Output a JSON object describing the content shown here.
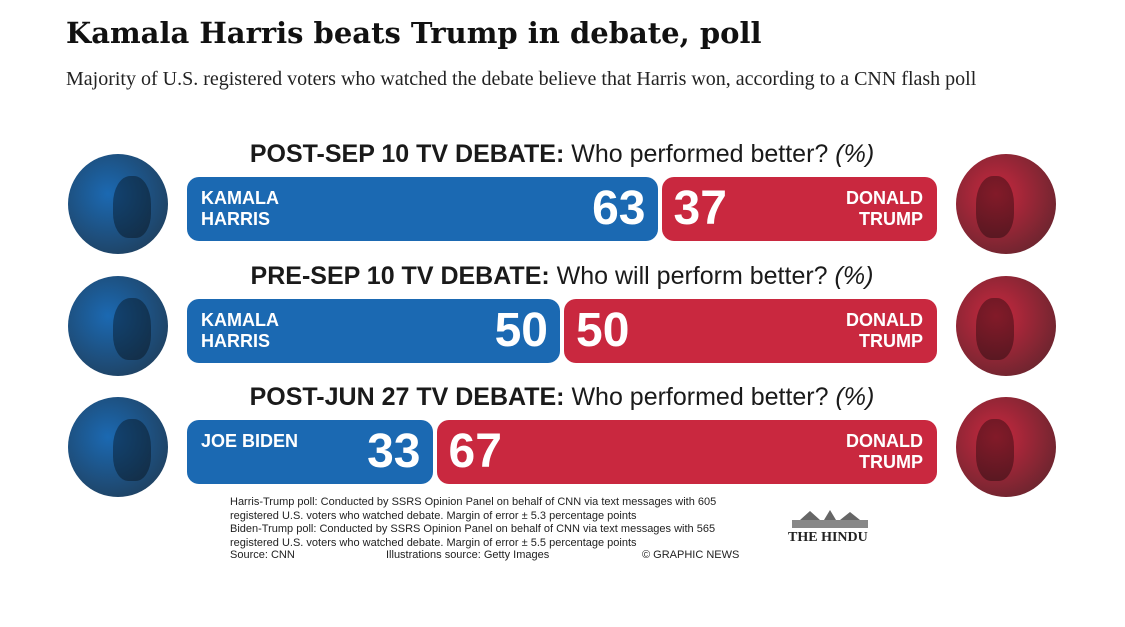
{
  "chart_data": {
    "type": "stacked-bar",
    "title": "Kamala Harris beats Trump in debate, poll",
    "subtitle": "Majority of U.S. registered voters who watched the debate believe that Harris won, according to a CNN flash poll",
    "rows": [
      {
        "heading": "POST-SEP 10 TV DEBATE:",
        "question": "Who performed better?",
        "unit": "(%)",
        "series": [
          {
            "name": "KAMALA HARRIS",
            "color": "#1b69b2",
            "value": 63
          },
          {
            "name": "DONALD TRUMP",
            "color": "#c9283f",
            "value": 37
          }
        ]
      },
      {
        "heading": "PRE-SEP 10 TV DEBATE:",
        "question": "Who will perform better?",
        "unit": "(%)",
        "series": [
          {
            "name": "KAMALA HARRIS",
            "color": "#1b69b2",
            "value": 50
          },
          {
            "name": "DONALD TRUMP",
            "color": "#c9283f",
            "value": 50
          }
        ]
      },
      {
        "heading": "POST-JUN 27 TV DEBATE:",
        "question": "Who performed better?",
        "unit": "(%)",
        "series": [
          {
            "name": "JOE BIDEN",
            "color": "#1b69b2",
            "value": 33
          },
          {
            "name": "DONALD TRUMP",
            "color": "#c9283f",
            "value": 67
          }
        ]
      }
    ],
    "notes": [
      "Harris-Trump poll: Conducted by SSRS Opinion Panel on behalf of CNN via text messages with 605 registered U.S. voters who watched debate. Margin of error ± 5.3 percentage points",
      "Biden-Trump poll: Conducted by SSRS Opinion Panel on behalf of CNN via text messages with 565 registered U.S. voters who watched debate. Margin of error ± 5.5 percentage points"
    ],
    "source": "Source: CNN",
    "illustrations": "Illustrations source: Getty Images",
    "credit": "© GRAPHIC NEWS",
    "publisher": "THE HINDU"
  }
}
